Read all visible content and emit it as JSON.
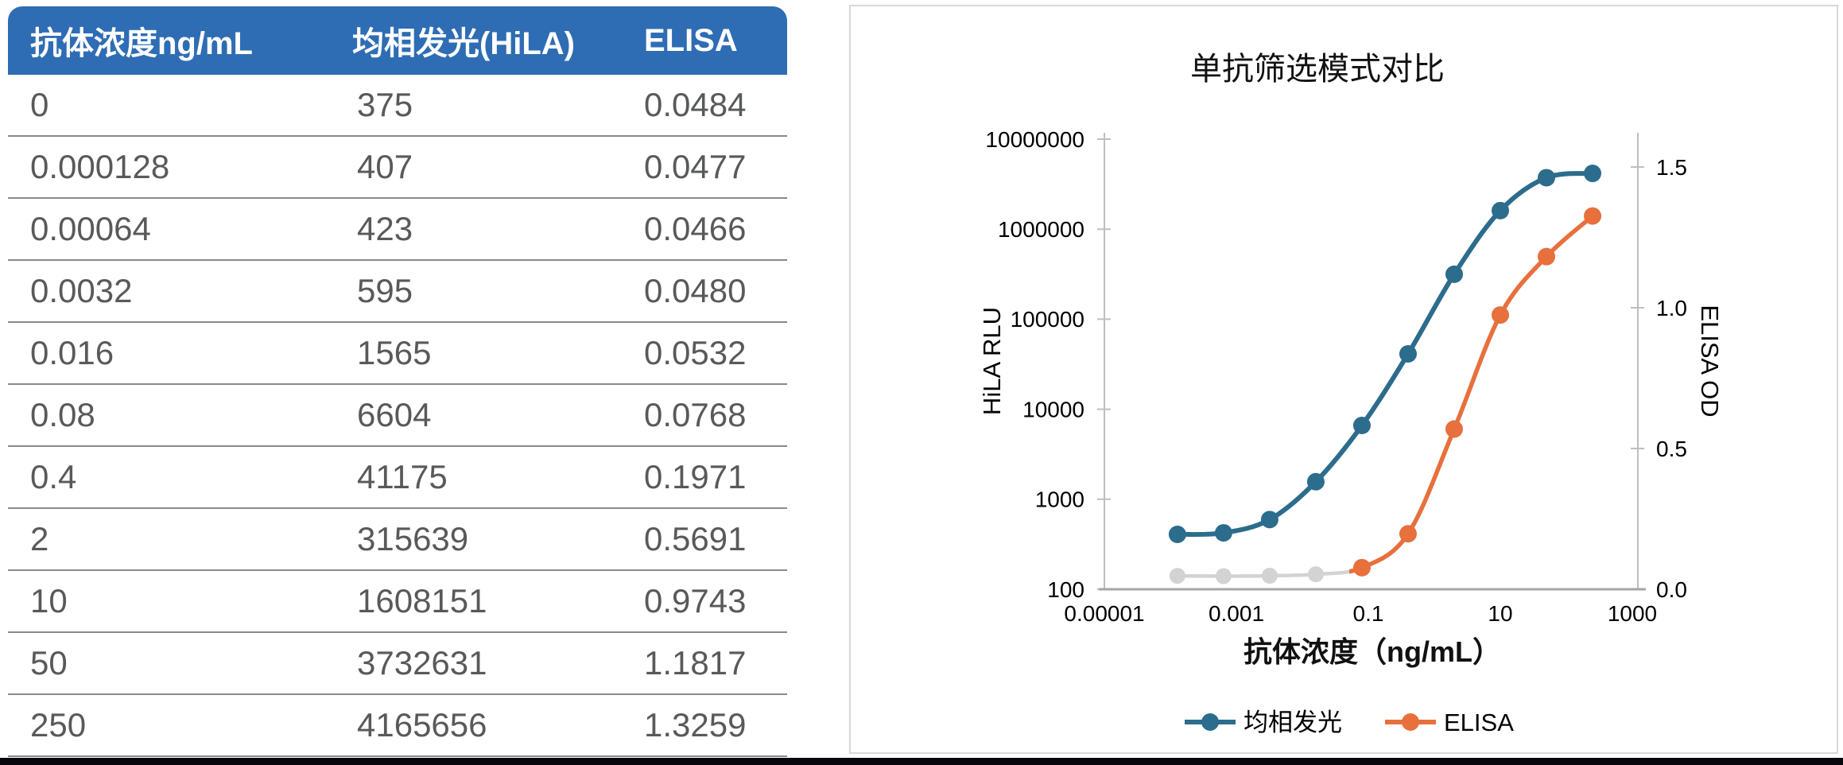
{
  "table": {
    "headers": [
      "抗体浓度ng/mL",
      "均相发光(HiLA)",
      "ELISA"
    ],
    "header_bg": "#2E6DB4",
    "rows": [
      [
        "0",
        "375",
        "0.0484"
      ],
      [
        "0.000128",
        "407",
        "0.0477"
      ],
      [
        "0.00064",
        "423",
        "0.0466"
      ],
      [
        "0.0032",
        "595",
        "0.0480"
      ],
      [
        "0.016",
        "1565",
        "0.0532"
      ],
      [
        "0.08",
        "6604",
        "0.0768"
      ],
      [
        "0.4",
        "41175",
        "0.1971"
      ],
      [
        "2",
        "315639",
        "0.5691"
      ],
      [
        "10",
        "1608151",
        "0.9743"
      ],
      [
        "50",
        "3732631",
        "1.1817"
      ],
      [
        "250",
        "4165656",
        "1.3259"
      ]
    ]
  },
  "chart_data": {
    "type": "line",
    "title": "单抗筛选模式对比",
    "xlabel": "抗体浓度（ng/mL）",
    "x_scale": "log",
    "x_range": [
      1e-05,
      1000
    ],
    "x_ticks": [
      "0.00001",
      "0.001",
      "0.1",
      "10",
      "1000"
    ],
    "y_left": {
      "label": "HiLA RLU",
      "scale": "log",
      "range": [
        100,
        10000000
      ],
      "ticks": [
        "100",
        "1000",
        "10000",
        "100000",
        "1000000",
        "10000000"
      ]
    },
    "y_right": {
      "label": "ELISA OD",
      "scale": "linear",
      "range": [
        0.0,
        1.5
      ],
      "ticks": [
        "0.0",
        "0.5",
        "1.0",
        "1.5"
      ]
    },
    "x": [
      0.000128,
      0.00064,
      0.0032,
      0.016,
      0.08,
      0.4,
      2,
      10,
      50,
      250
    ],
    "series": [
      {
        "name": "均相发光",
        "axis": "left",
        "color": "#2C6C8C",
        "values": [
          407,
          423,
          595,
          1565,
          6604,
          41175,
          315639,
          1608151,
          3732631,
          4165656
        ]
      },
      {
        "name": "ELISA",
        "axis": "right",
        "color": "#E7703D",
        "low_signal_color": "#D3D3D3",
        "gray_point_count": 4,
        "values": [
          0.0477,
          0.0466,
          0.048,
          0.0532,
          0.0768,
          0.1971,
          0.5691,
          0.9743,
          1.1817,
          1.3259
        ]
      }
    ],
    "legend": [
      {
        "label": "均相发光",
        "color": "#2C6C8C"
      },
      {
        "label": "ELISA",
        "color": "#E7703D"
      }
    ],
    "legend_position": "bottom",
    "note": "zero-concentration table row is not plotted on the log x-axis; lowest 4 ELISA points drawn in gray"
  }
}
